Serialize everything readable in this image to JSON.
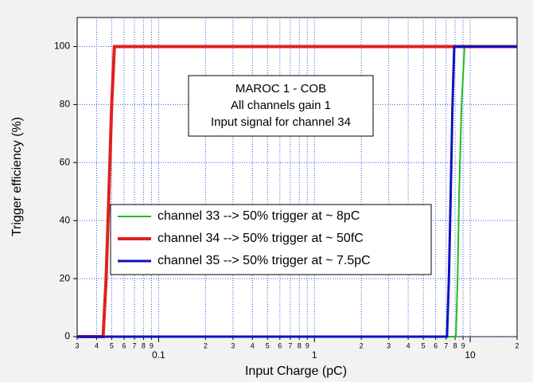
{
  "chart_data": {
    "type": "line",
    "xlabel": "Input Charge (pC)",
    "ylabel": "Trigger efficiency (%)",
    "annotation": [
      "MAROC 1 - COB",
      "All channels gain 1",
      "Input signal for channel 34"
    ],
    "xscale": "log",
    "grid": true,
    "xlim": [
      0.03,
      20
    ],
    "ylim": [
      0,
      110
    ],
    "yticks": [
      0,
      20,
      40,
      60,
      80,
      100
    ],
    "xticks": [
      {
        "value": 0.03,
        "label": "3"
      },
      {
        "value": 0.04,
        "label": "4"
      },
      {
        "value": 0.05,
        "label": "5"
      },
      {
        "value": 0.06,
        "label": "6"
      },
      {
        "value": 0.07,
        "label": "7"
      },
      {
        "value": 0.08,
        "label": "8"
      },
      {
        "value": 0.09,
        "label": "9"
      },
      0.1,
      {
        "value": 0.2,
        "label": "2"
      },
      {
        "value": 0.3,
        "label": "3"
      },
      {
        "value": 0.4,
        "label": "4"
      },
      {
        "value": 0.5,
        "label": "5"
      },
      {
        "value": 0.6,
        "label": "6"
      },
      {
        "value": 0.7,
        "label": "7"
      },
      {
        "value": 0.8,
        "label": "8"
      },
      {
        "value": 0.9,
        "label": "9"
      },
      1,
      {
        "value": 2,
        "label": "2"
      },
      {
        "value": 3,
        "label": "3"
      },
      {
        "value": 4,
        "label": "4"
      },
      {
        "value": 5,
        "label": "5"
      },
      {
        "value": 6,
        "label": "6"
      },
      {
        "value": 7,
        "label": "7"
      },
      {
        "value": 8,
        "label": "8"
      },
      {
        "value": 9,
        "label": "9"
      },
      10,
      {
        "value": 20,
        "label": "2"
      }
    ],
    "series": [
      {
        "name": "channel 33 --> 50% trigger at ~ 8pC",
        "color": "#22bb22",
        "width": 2,
        "x": [
          0.03,
          8.1,
          8.3,
          8.5,
          8.8,
          9.2,
          20
        ],
        "values": [
          0,
          0,
          20,
          50,
          80,
          100,
          100
        ]
      },
      {
        "name": "channel 34 --> 50% trigger at ~ 50fC",
        "color": "#e02020",
        "width": 4,
        "x": [
          0.03,
          0.044,
          0.046,
          0.048,
          0.05,
          0.052,
          20
        ],
        "values": [
          0,
          0,
          20,
          50,
          80,
          100,
          100
        ]
      },
      {
        "name": "channel 35 --> 50% trigger at ~ 7.5pC",
        "color": "#1010c0",
        "width": 3,
        "x": [
          0.03,
          7.1,
          7.3,
          7.5,
          7.7,
          7.9,
          20
        ],
        "values": [
          0,
          0,
          20,
          50,
          80,
          100,
          100
        ]
      }
    ]
  }
}
